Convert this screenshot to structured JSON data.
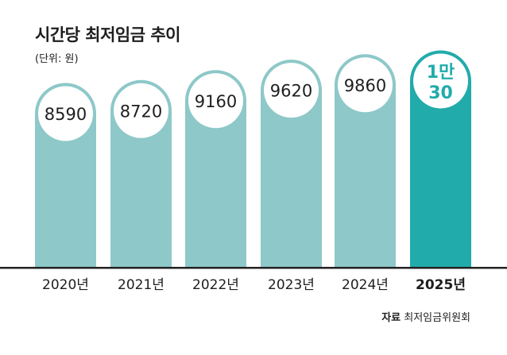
{
  "chart_data": {
    "type": "bar",
    "title": "시간당 최저임금 추이",
    "subtitle": "(단위: 원)",
    "categories": [
      "2020년",
      "2021년",
      "2022년",
      "2023년",
      "2024년",
      "2025년"
    ],
    "values": [
      8590,
      8720,
      9160,
      9620,
      9860,
      10030
    ],
    "value_labels": [
      "8590",
      "8720",
      "9160",
      "9620",
      "9860",
      "1만\n30"
    ],
    "highlight_index": 5,
    "colors": {
      "bar": "#8ec8c9",
      "highlight": "#22abab",
      "text": "#1e1e1e"
    },
    "grid": false,
    "legend": "none"
  },
  "source": {
    "label": "자료",
    "text": "최저임금위원회"
  }
}
